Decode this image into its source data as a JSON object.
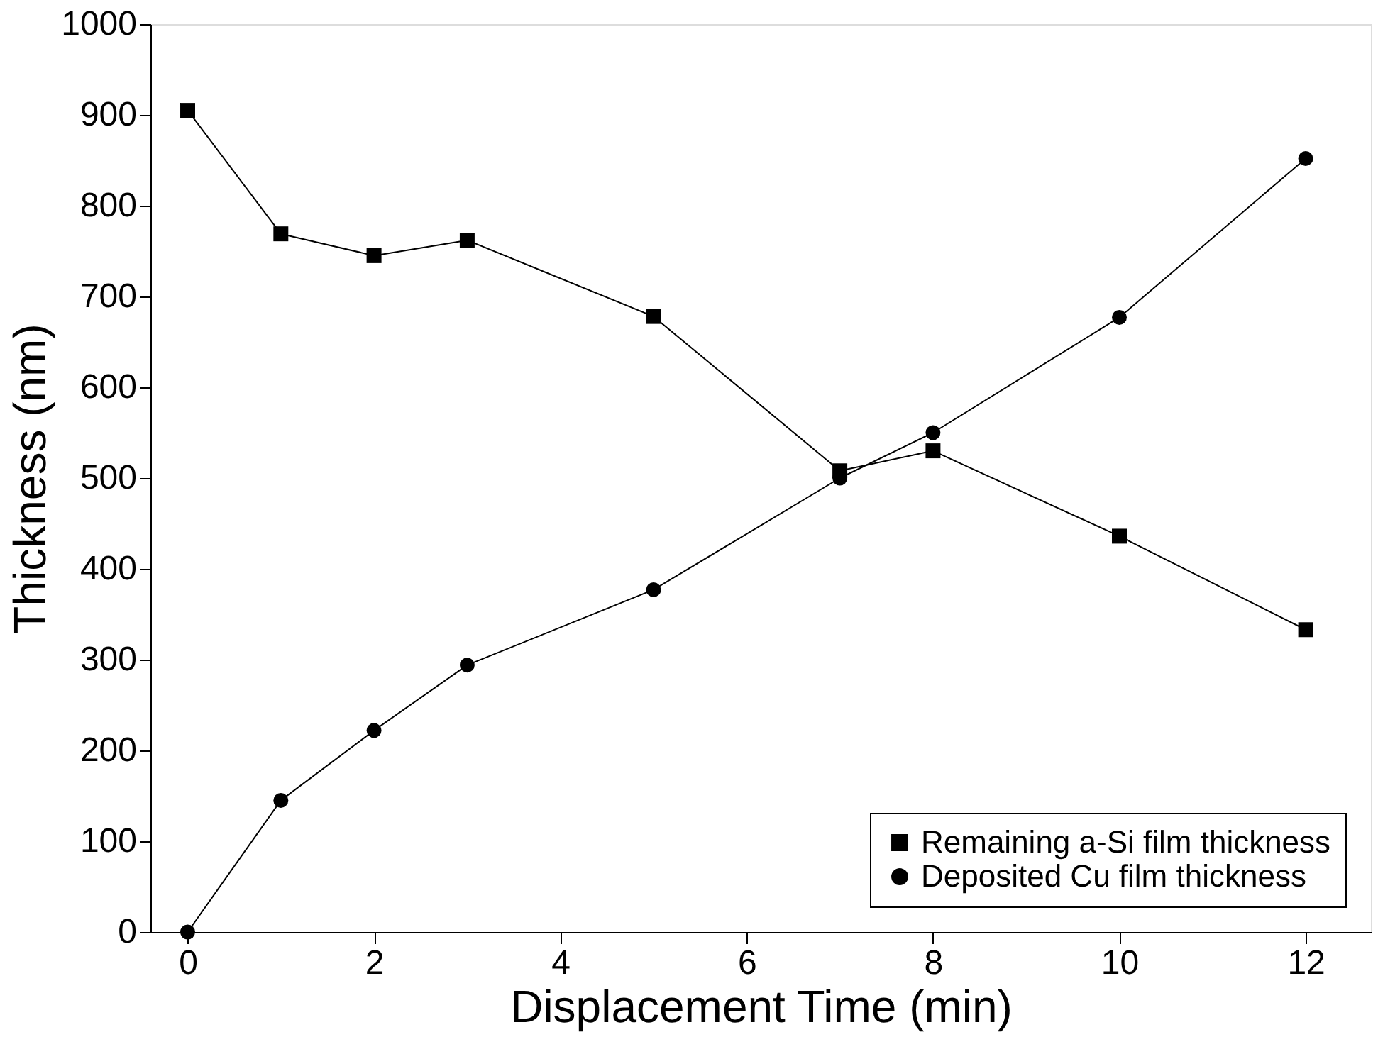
{
  "chart_data": {
    "type": "line",
    "xlabel": "Displacement Time (min)",
    "ylabel": "Thickness (nm)",
    "x": [
      0,
      1,
      2,
      3,
      5,
      7,
      8,
      10,
      12
    ],
    "series": [
      {
        "name": "Remaining a-Si film thickness",
        "color": "#000000",
        "marker": "square",
        "values": [
          905,
          769,
          745,
          762,
          678,
          508,
          530,
          436,
          333
        ]
      },
      {
        "name": "Deposited Cu film thickness",
        "color": "#000000",
        "marker": "circle",
        "values": [
          0,
          145,
          222,
          294,
          377,
          500,
          550,
          677,
          852
        ]
      }
    ],
    "xlim": [
      -0.4,
      12.7
    ],
    "ylim": [
      0,
      1000
    ],
    "xticks": [
      0,
      2,
      4,
      6,
      8,
      10,
      12
    ],
    "yticks": [
      0,
      100,
      200,
      300,
      400,
      500,
      600,
      700,
      800,
      900,
      1000
    ],
    "grid": false,
    "legend": "bottom right",
    "line_style": "solid"
  }
}
